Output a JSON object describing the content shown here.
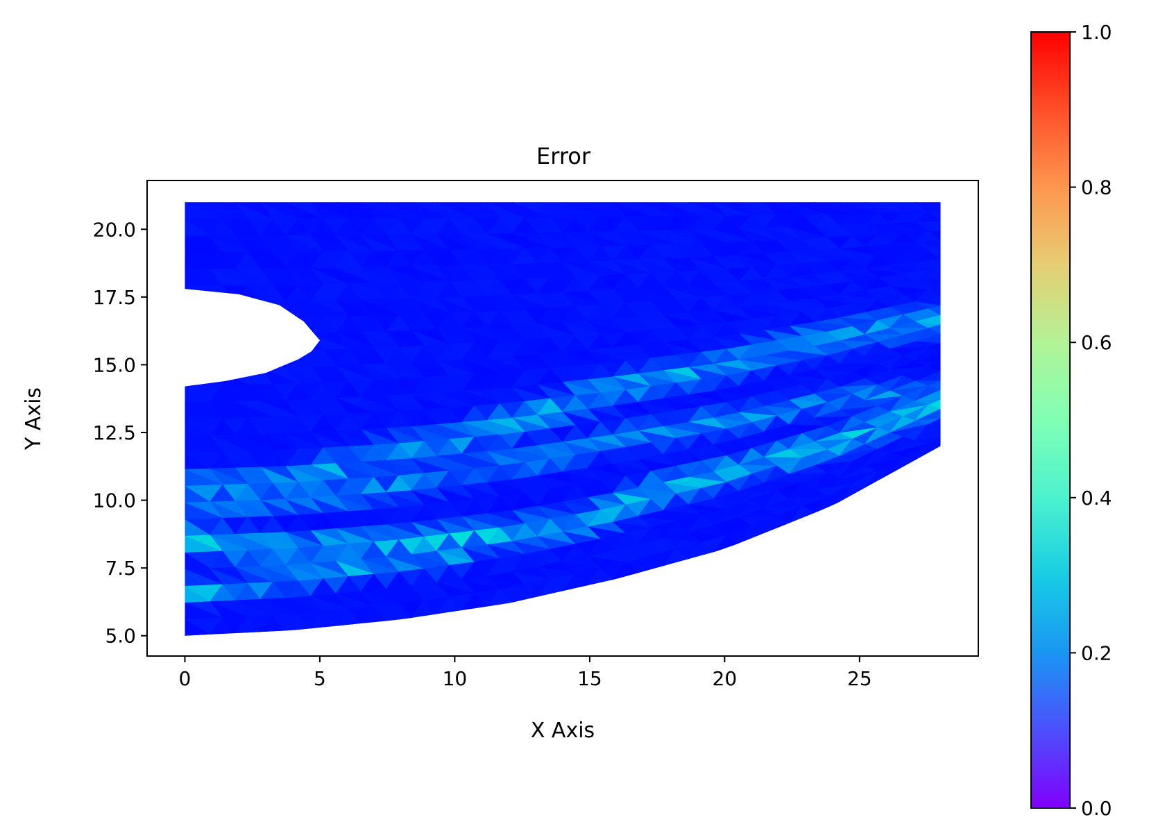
{
  "chart_data": {
    "type": "heatmap",
    "title": "Error",
    "xlabel": "X Axis",
    "ylabel": "Y Axis",
    "xlim": [
      -1.4,
      29.4
    ],
    "ylim": [
      4.25,
      21.8
    ],
    "xticks": [
      0,
      5,
      10,
      15,
      20,
      25
    ],
    "xtick_labels": [
      "0",
      "5",
      "10",
      "15",
      "20",
      "25"
    ],
    "yticks": [
      5.0,
      7.5,
      10.0,
      12.5,
      15.0,
      17.5,
      20.0
    ],
    "ytick_labels": [
      "5.0",
      "7.5",
      "10.0",
      "12.5",
      "15.0",
      "17.5",
      "20.0"
    ],
    "colormap": "rainbow",
    "colorbar": {
      "range": [
        0.0,
        1.0
      ],
      "ticks": [
        0.0,
        0.2,
        0.4,
        0.6,
        0.8,
        1.0
      ],
      "tick_labels": [
        "0.0",
        "0.2",
        "0.4",
        "0.6",
        "0.8",
        "1.0"
      ]
    },
    "grid": false,
    "domain": {
      "x_range": [
        0,
        28
      ],
      "top_y": 21,
      "bottom_boundary": [
        [
          0,
          5.0
        ],
        [
          4,
          5.2
        ],
        [
          8,
          5.6
        ],
        [
          12,
          6.2
        ],
        [
          16,
          7.1
        ],
        [
          20,
          8.2
        ],
        [
          24,
          9.8
        ],
        [
          28,
          12.0
        ]
      ],
      "hole_boundary": [
        [
          0,
          17.8
        ],
        [
          2,
          17.6
        ],
        [
          3.5,
          17.2
        ],
        [
          4.4,
          16.6
        ],
        [
          5.0,
          15.9
        ],
        [
          4.7,
          15.5
        ],
        [
          4.2,
          15.2
        ],
        [
          3.0,
          14.7
        ],
        [
          1.5,
          14.4
        ],
        [
          0,
          14.2
        ]
      ]
    },
    "error_bands": [
      {
        "path": [
          [
            0.5,
            10.5
          ],
          [
            3.5,
            10.6
          ],
          [
            5,
            11.0
          ],
          [
            7,
            11.6
          ],
          [
            9,
            12.0
          ],
          [
            11,
            12.5
          ],
          [
            14,
            13.5
          ],
          [
            17,
            14.4
          ],
          [
            20,
            15.0
          ],
          [
            23,
            15.8
          ],
          [
            26,
            16.4
          ],
          [
            28,
            16.6
          ]
        ],
        "width": 0.9,
        "peak": 0.3
      },
      {
        "path": [
          [
            0,
            10.0
          ],
          [
            3,
            9.9
          ],
          [
            6,
            10.2
          ],
          [
            9,
            10.8
          ],
          [
            12,
            11.3
          ],
          [
            15,
            12.0
          ],
          [
            18,
            12.6
          ],
          [
            21,
            13.1
          ],
          [
            24,
            13.7
          ],
          [
            28,
            14.0
          ]
        ],
        "width": 0.8,
        "peak": 0.25
      },
      {
        "path": [
          [
            0,
            8.5
          ],
          [
            3,
            8.3
          ],
          [
            6,
            8.3
          ],
          [
            9,
            8.5
          ],
          [
            12,
            8.8
          ],
          [
            15,
            9.3
          ],
          [
            17,
            10.2
          ],
          [
            20,
            11.0
          ],
          [
            23,
            11.8
          ],
          [
            26,
            12.8
          ],
          [
            28,
            13.6
          ]
        ],
        "width": 0.85,
        "peak": 0.35
      },
      {
        "path": [
          [
            0,
            6.5
          ],
          [
            3,
            7.0
          ],
          [
            5,
            7.3
          ],
          [
            7,
            7.6
          ],
          [
            10,
            7.9
          ]
        ],
        "width": 0.7,
        "peak": 0.3
      }
    ]
  }
}
